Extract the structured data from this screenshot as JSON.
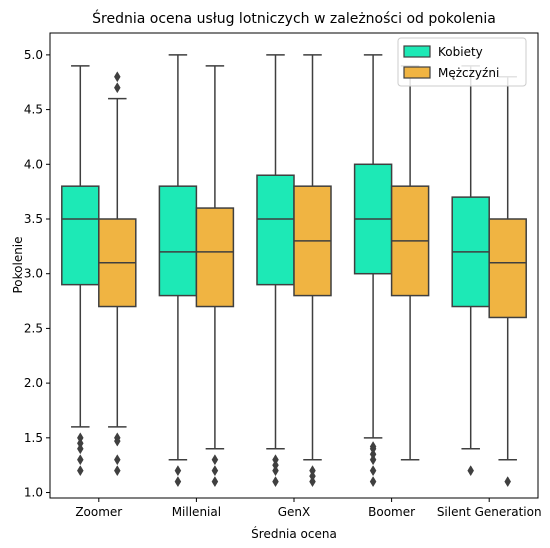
{
  "chart_data": {
    "type": "boxplot",
    "title": "Średnia ocena usług lotniczych w zależności od pokolenia",
    "xlabel": "Średnia ocena",
    "ylabel": "Pokolenie",
    "ylim": [
      0.95,
      5.2
    ],
    "yticks": [
      "1.0",
      "1.5",
      "2.0",
      "2.5",
      "3.0",
      "3.5",
      "4.0",
      "4.5",
      "5.0"
    ],
    "categories": [
      "Zoomer",
      "Millenial",
      "GenX",
      "Boomer",
      "Silent Generation"
    ],
    "legend": {
      "placement": "top-right"
    },
    "series": [
      {
        "name": "Kobiety",
        "color": "#1de9b6",
        "boxes": [
          {
            "whislo": 1.6,
            "q1": 2.9,
            "med": 3.5,
            "q3": 3.8,
            "whishi": 4.9,
            "fliers": [
              1.5,
              1.45,
              1.4,
              1.3,
              1.2
            ]
          },
          {
            "whislo": 1.3,
            "q1": 2.8,
            "med": 3.2,
            "q3": 3.8,
            "whishi": 5.0,
            "fliers": [
              1.2,
              1.1
            ]
          },
          {
            "whislo": 1.4,
            "q1": 2.9,
            "med": 3.5,
            "q3": 3.9,
            "whishi": 5.0,
            "fliers": [
              1.3,
              1.25,
              1.2,
              1.1
            ]
          },
          {
            "whislo": 1.5,
            "q1": 3.0,
            "med": 3.5,
            "q3": 4.0,
            "whishi": 5.0,
            "fliers": [
              1.42,
              1.4,
              1.35,
              1.3,
              1.2,
              1.1
            ]
          },
          {
            "whislo": 1.4,
            "q1": 2.7,
            "med": 3.2,
            "q3": 3.7,
            "whishi": 4.9,
            "fliers": [
              1.2
            ]
          }
        ]
      },
      {
        "name": "Mężczyźni",
        "color": "#f0b442",
        "boxes": [
          {
            "whislo": 1.6,
            "q1": 2.7,
            "med": 3.1,
            "q3": 3.5,
            "whishi": 4.6,
            "fliers": [
              1.5,
              1.47,
              1.3,
              1.2,
              4.7,
              4.8
            ]
          },
          {
            "whislo": 1.4,
            "q1": 2.7,
            "med": 3.2,
            "q3": 3.6,
            "whishi": 4.9,
            "fliers": [
              1.3,
              1.2,
              1.1
            ]
          },
          {
            "whislo": 1.3,
            "q1": 2.8,
            "med": 3.3,
            "q3": 3.8,
            "whishi": 5.0,
            "fliers": [
              1.2,
              1.15,
              1.1
            ]
          },
          {
            "whislo": 1.3,
            "q1": 2.8,
            "med": 3.3,
            "q3": 3.8,
            "whishi": 4.9,
            "fliers": []
          },
          {
            "whislo": 1.3,
            "q1": 2.6,
            "med": 3.1,
            "q3": 3.5,
            "whishi": 4.8,
            "fliers": [
              1.1
            ]
          }
        ]
      }
    ]
  }
}
